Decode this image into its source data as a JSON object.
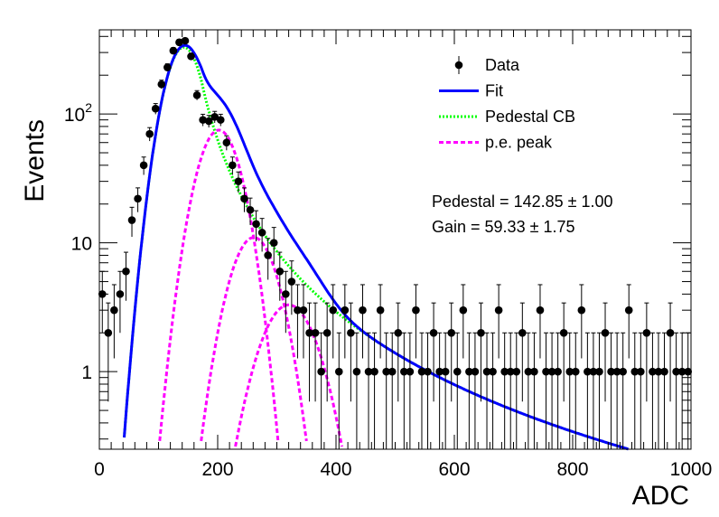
{
  "chart_data": {
    "type": "scatter",
    "xlabel": "ADC",
    "ylabel": "Events",
    "xlim": [
      0,
      1000
    ],
    "ylim": [
      0.25,
      450
    ],
    "yscale": "log",
    "grid": false,
    "legend_placement": "top-right",
    "x_ticks": [
      {
        "value": 0,
        "label": "0"
      },
      {
        "value": 200,
        "label": "200"
      },
      {
        "value": 400,
        "label": "400"
      },
      {
        "value": 600,
        "label": "600"
      },
      {
        "value": 800,
        "label": "800"
      },
      {
        "value": 1000,
        "label": "1000"
      }
    ],
    "y_ticks": [
      {
        "value": 1,
        "label": "1"
      },
      {
        "value": 10,
        "label": "10"
      },
      {
        "value": 100,
        "label": "10",
        "sup": "2"
      }
    ],
    "legend": [
      {
        "name": "Data",
        "style": "marker",
        "color": "#000000"
      },
      {
        "name": "Fit",
        "style": "solid",
        "color": "#0000ff"
      },
      {
        "name": "Pedestal CB",
        "style": "dotted",
        "color": "#00ff00"
      },
      {
        "name": "p.e. peak",
        "style": "dashed",
        "color": "#ff00ff"
      }
    ],
    "annotations": [
      "Pedestal = 142.85 ± 1.00",
      "Gain = 59.33 ± 1.75"
    ],
    "data_points": {
      "x": [
        5,
        15,
        25,
        35,
        45,
        55,
        65,
        75,
        85,
        95,
        105,
        115,
        125,
        135,
        145,
        155,
        165,
        175,
        185,
        195,
        205,
        215,
        225,
        235,
        245,
        255,
        265,
        275,
        285,
        295,
        305,
        315,
        325,
        335,
        345,
        355,
        365,
        375,
        385,
        395,
        405,
        415,
        425,
        435,
        445,
        455,
        465,
        475,
        485,
        495,
        505,
        515,
        525,
        535,
        545,
        555,
        565,
        575,
        585,
        595,
        605,
        615,
        625,
        635,
        645,
        655,
        665,
        675,
        685,
        695,
        705,
        715,
        725,
        735,
        745,
        755,
        765,
        775,
        785,
        795,
        805,
        815,
        825,
        835,
        845,
        855,
        865,
        875,
        885,
        895,
        905,
        915,
        925,
        935,
        945,
        955,
        965,
        975,
        985,
        995
      ],
      "y": [
        4,
        2,
        3,
        4,
        6,
        15,
        22,
        40,
        70,
        110,
        170,
        230,
        310,
        360,
        370,
        280,
        140,
        90,
        88,
        95,
        90,
        60,
        40,
        30,
        22,
        18,
        14,
        12,
        8,
        10,
        6,
        4,
        5,
        3,
        3,
        2,
        2,
        1,
        2,
        3,
        1,
        3,
        2,
        1,
        3,
        1,
        1,
        3,
        1,
        1,
        2,
        1,
        1,
        3,
        1,
        1,
        2,
        1,
        1,
        2,
        1,
        3,
        1,
        1,
        2,
        1,
        1,
        3,
        1,
        1,
        1,
        2,
        1,
        1,
        3,
        1,
        1,
        1,
        2,
        1,
        1,
        3,
        1,
        1,
        1,
        2,
        1,
        1,
        1,
        3,
        1,
        1,
        2,
        1,
        1,
        1,
        2,
        1,
        1,
        1
      ]
    },
    "pe_peaks": [
      {
        "mean": 202,
        "amplitude": 75,
        "sigma": 30
      },
      {
        "mean": 261,
        "amplitude": 11,
        "sigma": 33
      },
      {
        "mean": 320,
        "amplitude": 3.3,
        "sigma": 40
      }
    ],
    "pedestal": {
      "mean": 142.85,
      "amplitude": 330,
      "sigma": 27
    },
    "gain": 59.33
  },
  "colors": {
    "data": "#000000",
    "fit": "#0000ff",
    "pedestal": "#00ff00",
    "pe": "#ff00ff"
  }
}
